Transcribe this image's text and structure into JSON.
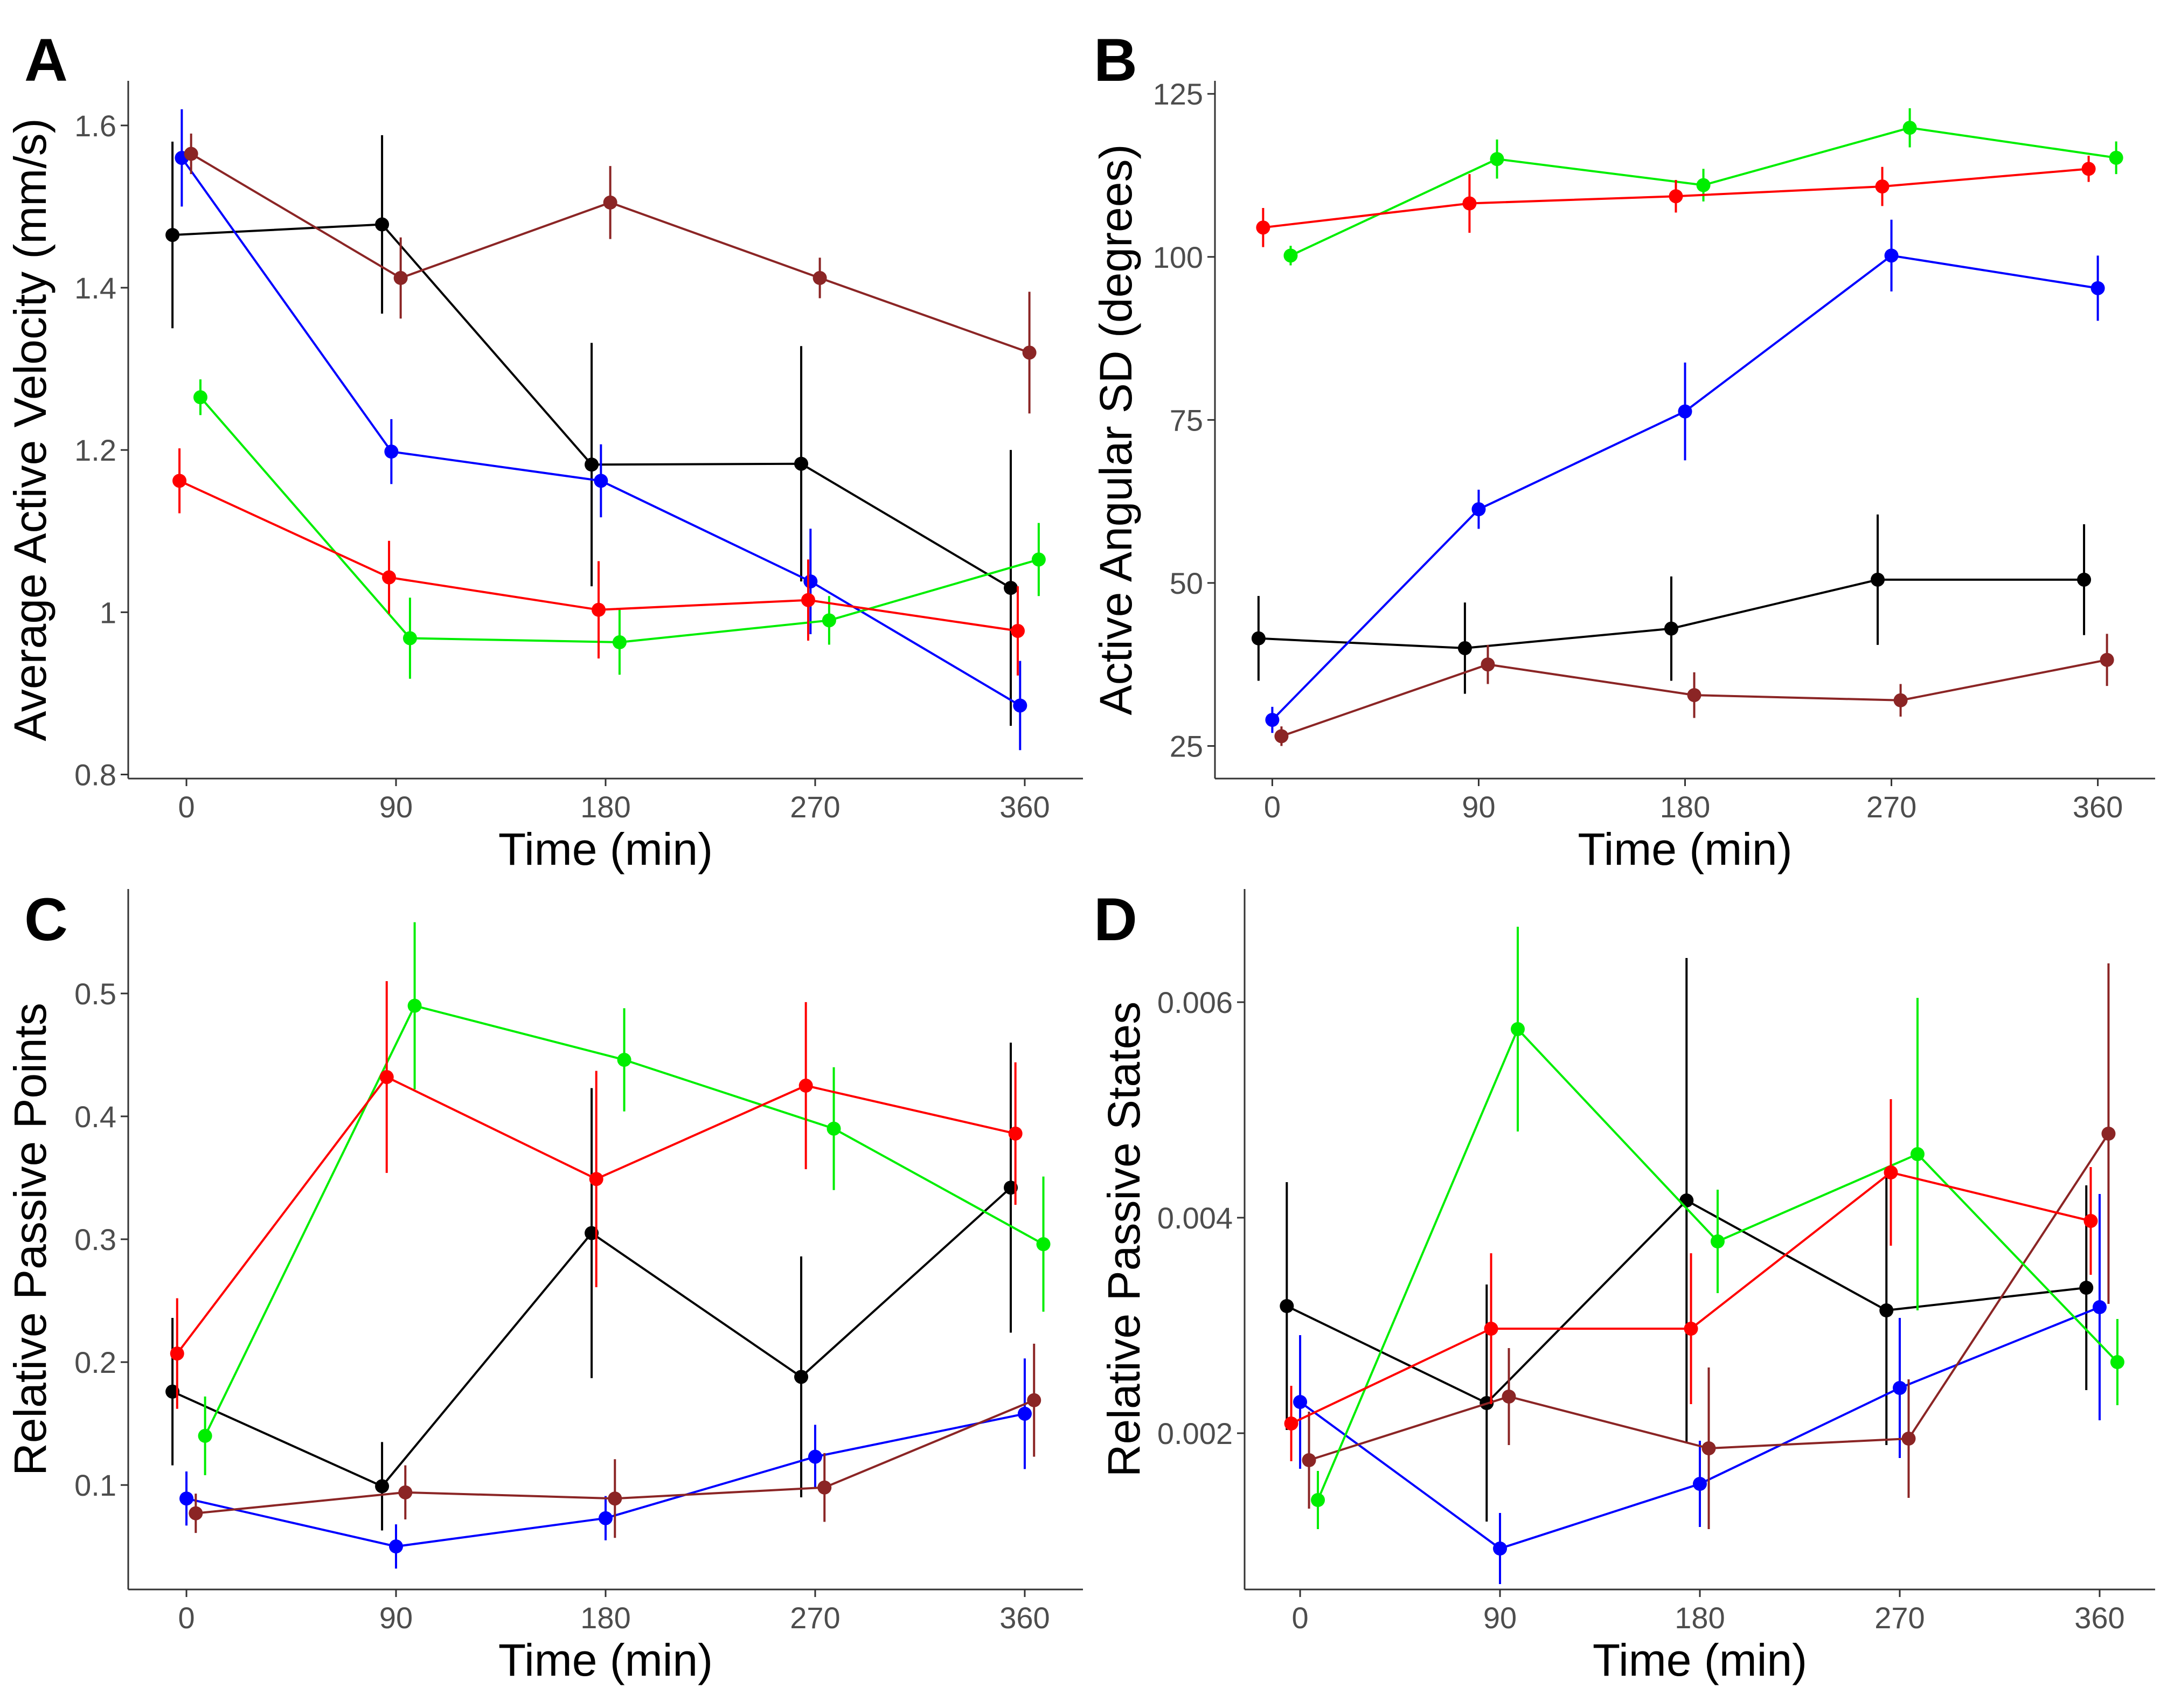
{
  "figure": {
    "series_colors": [
      "#000000",
      "#0000ff",
      "#8b2525",
      "#00ee00",
      "#ff0000"
    ]
  },
  "chart_data": [
    {
      "panel": "A",
      "type": "line",
      "xlabel": "Time (min)",
      "ylabel": "Average Active Velocity (mm/s)",
      "xlim": [
        -25,
        385
      ],
      "ylim": [
        0.795,
        1.655
      ],
      "xticks": [
        0,
        90,
        180,
        270,
        360
      ],
      "yticks": [
        0.8,
        1.0,
        1.2,
        1.4,
        1.6
      ],
      "series": [
        {
          "name": "black",
          "color": "#000000",
          "x": [
            -6,
            84,
            174,
            264,
            354
          ],
          "y": [
            1.465,
            1.478,
            1.182,
            1.183,
            1.03
          ],
          "err": [
            0.115,
            0.11,
            0.15,
            0.145,
            0.17
          ]
        },
        {
          "name": "blue",
          "color": "#0000ff",
          "x": [
            -2,
            88,
            178,
            268,
            358
          ],
          "y": [
            1.56,
            1.198,
            1.162,
            1.038,
            0.885
          ],
          "err": [
            0.06,
            0.04,
            0.045,
            0.065,
            0.055
          ]
        },
        {
          "name": "brown",
          "color": "#8b2525",
          "x": [
            2,
            92,
            182,
            272,
            362
          ],
          "y": [
            1.565,
            1.412,
            1.505,
            1.412,
            1.32
          ],
          "err": [
            0.025,
            0.05,
            0.045,
            0.025,
            0.075
          ]
        },
        {
          "name": "green",
          "color": "#00ee00",
          "x": [
            6,
            96,
            186,
            276,
            366
          ],
          "y": [
            1.265,
            0.968,
            0.963,
            0.99,
            1.065
          ],
          "err": [
            0.022,
            0.05,
            0.04,
            0.03,
            0.045
          ]
        },
        {
          "name": "red",
          "color": "#ff0000",
          "x": [
            -3,
            87,
            177,
            267,
            357
          ],
          "y": [
            1.162,
            1.043,
            1.003,
            1.015,
            0.977
          ],
          "err": [
            0.04,
            0.045,
            0.06,
            0.05,
            0.055
          ]
        }
      ]
    },
    {
      "panel": "B",
      "type": "line",
      "xlabel": "Time (min)",
      "ylabel": "Active Angular SD (degrees)",
      "xlim": [
        -25,
        385
      ],
      "ylim": [
        20,
        127
      ],
      "xticks": [
        0,
        90,
        180,
        270,
        360
      ],
      "yticks": [
        25,
        50,
        75,
        100,
        125
      ],
      "series": [
        {
          "name": "black",
          "color": "#000000",
          "x": [
            -6,
            84,
            174,
            264,
            354
          ],
          "y": [
            41.5,
            40,
            43,
            50.5,
            50.5
          ],
          "err": [
            6.5,
            7,
            8,
            10,
            8.5
          ]
        },
        {
          "name": "blue",
          "color": "#0000ff",
          "x": [
            0,
            90,
            180,
            270,
            360
          ],
          "y": [
            29,
            61.3,
            76.3,
            100.2,
            95.2
          ],
          "err": [
            2,
            3,
            7.5,
            5.5,
            5
          ]
        },
        {
          "name": "brown",
          "color": "#8b2525",
          "x": [
            4,
            94,
            184,
            274,
            364
          ],
          "y": [
            26.5,
            37.5,
            32.8,
            32,
            38.2
          ],
          "err": [
            1.5,
            3,
            3.5,
            2.5,
            4
          ]
        },
        {
          "name": "green",
          "color": "#00ee00",
          "x": [
            8,
            98,
            188,
            278,
            368
          ],
          "y": [
            100.2,
            115,
            111,
            119.8,
            115.2
          ],
          "err": [
            1.5,
            3,
            2.5,
            3,
            2.5
          ]
        },
        {
          "name": "red",
          "color": "#ff0000",
          "x": [
            -4,
            86,
            176,
            266,
            356
          ],
          "y": [
            104.5,
            108.2,
            109.3,
            110.8,
            113.5
          ],
          "err": [
            3,
            4.5,
            2.5,
            3,
            2
          ]
        }
      ]
    },
    {
      "panel": "C",
      "type": "line",
      "xlabel": "Time (min)",
      "ylabel": "Relative Passive Points",
      "xlim": [
        -25,
        385
      ],
      "ylim": [
        0.015,
        0.585
      ],
      "xticks": [
        0,
        90,
        180,
        270,
        360
      ],
      "yticks": [
        0.1,
        0.2,
        0.3,
        0.4,
        0.5
      ],
      "series": [
        {
          "name": "black",
          "color": "#000000",
          "x": [
            -6,
            84,
            174,
            264,
            354
          ],
          "y": [
            0.176,
            0.099,
            0.305,
            0.188,
            0.342
          ],
          "err": [
            0.06,
            0.036,
            0.118,
            0.098,
            0.118
          ]
        },
        {
          "name": "blue",
          "color": "#0000ff",
          "x": [
            0,
            90,
            180,
            270,
            360
          ],
          "y": [
            0.089,
            0.05,
            0.073,
            0.123,
            0.158
          ],
          "err": [
            0.022,
            0.018,
            0.018,
            0.026,
            0.045
          ]
        },
        {
          "name": "brown",
          "color": "#8b2525",
          "x": [
            4,
            94,
            184,
            274,
            364
          ],
          "y": [
            0.077,
            0.094,
            0.089,
            0.098,
            0.169
          ],
          "err": [
            0.016,
            0.022,
            0.032,
            0.028,
            0.046
          ]
        },
        {
          "name": "green",
          "color": "#00ee00",
          "x": [
            8,
            98,
            188,
            278,
            368
          ],
          "y": [
            0.14,
            0.49,
            0.446,
            0.39,
            0.296
          ],
          "err": [
            0.032,
            0.068,
            0.042,
            0.05,
            0.055
          ]
        },
        {
          "name": "red",
          "color": "#ff0000",
          "x": [
            -4,
            86,
            176,
            266,
            356
          ],
          "y": [
            0.207,
            0.432,
            0.349,
            0.425,
            0.386
          ],
          "err": [
            0.045,
            0.078,
            0.088,
            0.068,
            0.058
          ]
        }
      ]
    },
    {
      "panel": "D",
      "type": "line",
      "xlabel": "Time (min)",
      "ylabel": "Relative Passive States",
      "xlim": [
        -25,
        385
      ],
      "ylim": [
        0.00055,
        0.00705
      ],
      "xticks": [
        0,
        90,
        180,
        270,
        360
      ],
      "yticks": [
        0.002,
        0.004,
        0.006
      ],
      "ytick_labels": [
        "0.002",
        "0.004",
        "0.006"
      ],
      "series": [
        {
          "name": "black",
          "color": "#000000",
          "x": [
            -6,
            84,
            174,
            264,
            354
          ],
          "y": [
            0.00318,
            0.00228,
            0.00416,
            0.00314,
            0.00335
          ],
          "err": [
            0.00115,
            0.0011,
            0.00225,
            0.00125,
            0.00095
          ]
        },
        {
          "name": "blue",
          "color": "#0000ff",
          "x": [
            0,
            90,
            180,
            270,
            360
          ],
          "y": [
            0.00229,
            0.00093,
            0.00153,
            0.00242,
            0.00317
          ],
          "err": [
            0.00062,
            0.00033,
            0.0004,
            0.00065,
            0.00105
          ]
        },
        {
          "name": "brown",
          "color": "#8b2525",
          "x": [
            4,
            94,
            184,
            274,
            364
          ],
          "y": [
            0.00175,
            0.00234,
            0.00186,
            0.00195,
            0.00478
          ],
          "err": [
            0.00045,
            0.00045,
            0.00075,
            0.00055,
            0.00158
          ]
        },
        {
          "name": "green",
          "color": "#00ee00",
          "x": [
            8,
            98,
            188,
            278,
            368
          ],
          "y": [
            0.00138,
            0.00575,
            0.00378,
            0.00459,
            0.00266
          ],
          "err": [
            0.00027,
            0.00095,
            0.00048,
            0.00145,
            0.0004
          ]
        },
        {
          "name": "red",
          "color": "#ff0000",
          "x": [
            -4,
            86,
            176,
            266,
            356
          ],
          "y": [
            0.00209,
            0.00297,
            0.00297,
            0.00442,
            0.00397
          ],
          "err": [
            0.00035,
            0.0007,
            0.0007,
            0.00068,
            0.0005
          ]
        }
      ]
    }
  ]
}
